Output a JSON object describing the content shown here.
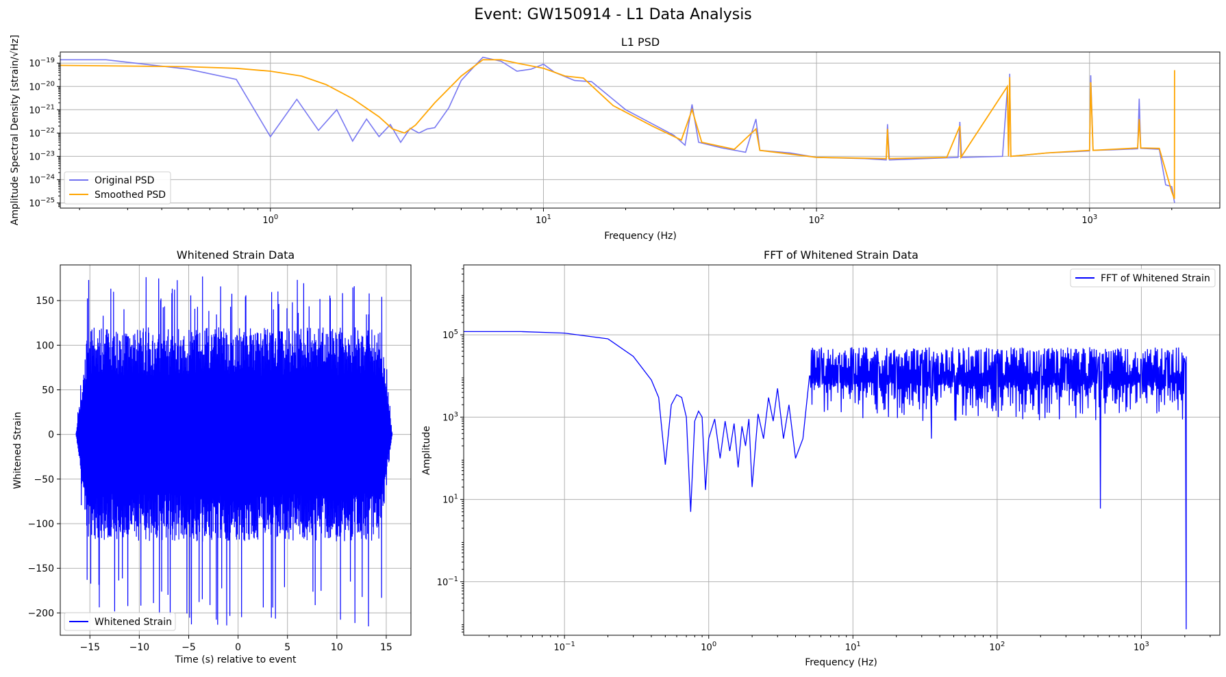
{
  "figure": {
    "suptitle": "Event: GW150914 - L1 Data Analysis"
  },
  "colors": {
    "original": "#7070f0",
    "smoothed": "#ffa500",
    "strain": "#0000ff",
    "fft": "#0000ff"
  },
  "chart_data": [
    {
      "id": "psd",
      "type": "line",
      "title": "L1 PSD",
      "xlabel": "Frequency (Hz)",
      "ylabel": "Amplitude Spectral Density [strain/√Hz]",
      "xscale": "log",
      "yscale": "log",
      "xlim": [
        0.17,
        3000
      ],
      "ylim": [
        6e-26,
        3e-19
      ],
      "xticks": [
        {
          "v": 1,
          "m": "10",
          "e": "0"
        },
        {
          "v": 10,
          "m": "10",
          "e": "1"
        },
        {
          "v": 100,
          "m": "10",
          "e": "2"
        },
        {
          "v": 1000,
          "m": "10",
          "e": "3"
        }
      ],
      "yticks": [
        {
          "v": 1e-19,
          "m": "10",
          "e": "−19"
        },
        {
          "v": 1e-20,
          "m": "10",
          "e": "−20"
        },
        {
          "v": 1e-21,
          "m": "10",
          "e": "−21"
        },
        {
          "v": 1e-22,
          "m": "10",
          "e": "−22"
        },
        {
          "v": 1e-23,
          "m": "10",
          "e": "−23"
        },
        {
          "v": 1e-24,
          "m": "10",
          "e": "−24"
        },
        {
          "v": 1e-25,
          "m": "10",
          "e": "−25"
        }
      ],
      "grid": true,
      "legend": {
        "placement": "lower-left",
        "entries": [
          "Original PSD",
          "Smoothed PSD"
        ]
      },
      "series": [
        {
          "name": "Original PSD",
          "color": "#7070f0",
          "points": [
            [
              0.17,
              1.4e-19
            ],
            [
              0.25,
              1.4e-19
            ],
            [
              0.5,
              5.5e-20
            ],
            [
              0.75,
              2e-20
            ],
            [
              1.0,
              7e-23
            ],
            [
              1.25,
              2.8e-21
            ],
            [
              1.5,
              1.3e-22
            ],
            [
              1.75,
              1e-21
            ],
            [
              2.0,
              4.5e-23
            ],
            [
              2.25,
              4e-22
            ],
            [
              2.5,
              7e-23
            ],
            [
              2.75,
              2.3e-22
            ],
            [
              3.0,
              4e-23
            ],
            [
              3.25,
              1.6e-22
            ],
            [
              3.5,
              1e-22
            ],
            [
              3.75,
              1.5e-22
            ],
            [
              4.0,
              1.7e-22
            ],
            [
              4.5,
              1.2e-21
            ],
            [
              5.0,
              1.8e-20
            ],
            [
              6.0,
              1.8e-19
            ],
            [
              7.0,
              1.2e-19
            ],
            [
              8.0,
              4.5e-20
            ],
            [
              9.0,
              5.5e-20
            ],
            [
              10.0,
              9e-20
            ],
            [
              11.0,
              4e-20
            ],
            [
              13.0,
              1.8e-20
            ],
            [
              15.0,
              1.6e-20
            ],
            [
              20.0,
              1e-21
            ],
            [
              25.0,
              2.5e-22
            ],
            [
              30.0,
              8e-23
            ],
            [
              33.0,
              3e-23
            ],
            [
              35.0,
              1.7e-21
            ],
            [
              37.0,
              4e-23
            ],
            [
              45.0,
              2.3e-23
            ],
            [
              55.0,
              1.5e-23
            ],
            [
              60.0,
              4e-22
            ],
            [
              62.0,
              1.8e-23
            ],
            [
              80.0,
              1.4e-23
            ],
            [
              100.0,
              9e-24
            ],
            [
              150.0,
              8e-24
            ],
            [
              180.0,
              7e-24
            ],
            [
              182.0,
              2.4e-22
            ],
            [
              185.0,
              7e-24
            ],
            [
              250.0,
              8e-24
            ],
            [
              330.0,
              9e-24
            ],
            [
              335.0,
              3e-22
            ],
            [
              340.0,
              9e-24
            ],
            [
              480.0,
              1e-23
            ],
            [
              500.0,
              8e-21
            ],
            [
              505.0,
              1e-23
            ],
            [
              510.0,
              3.5e-20
            ],
            [
              515.0,
              1e-23
            ],
            [
              700.0,
              1.4e-23
            ],
            [
              1000.0,
              1.7e-23
            ],
            [
              1010.0,
              3e-20
            ],
            [
              1030.0,
              1.8e-23
            ],
            [
              1200.0,
              1.9e-23
            ],
            [
              1500.0,
              2.1e-23
            ],
            [
              1520.0,
              3e-21
            ],
            [
              1540.0,
              2.2e-23
            ],
            [
              1800.0,
              2e-23
            ],
            [
              1900.0,
              6e-25
            ],
            [
              2000.0,
              5e-25
            ],
            [
              2048.0,
              1e-25
            ]
          ]
        },
        {
          "name": "Smoothed PSD",
          "color": "#ffa500",
          "points": [
            [
              0.17,
              8e-20
            ],
            [
              0.3,
              7.5e-20
            ],
            [
              0.5,
              7e-20
            ],
            [
              0.75,
              6e-20
            ],
            [
              1.0,
              4.5e-20
            ],
            [
              1.3,
              2.8e-20
            ],
            [
              1.6,
              1.2e-20
            ],
            [
              2.0,
              3e-21
            ],
            [
              2.5,
              5e-22
            ],
            [
              2.8,
              1.5e-22
            ],
            [
              3.1,
              1e-22
            ],
            [
              3.4,
              2.2e-22
            ],
            [
              4.0,
              2e-21
            ],
            [
              5.0,
              2.8e-20
            ],
            [
              6.0,
              1.4e-19
            ],
            [
              7.0,
              1.4e-19
            ],
            [
              8.0,
              1e-19
            ],
            [
              10.0,
              6e-20
            ],
            [
              12.0,
              2.8e-20
            ],
            [
              14.0,
              2.3e-20
            ],
            [
              18.0,
              1.5e-21
            ],
            [
              25.0,
              2e-22
            ],
            [
              32.0,
              5e-23
            ],
            [
              35.0,
              1e-21
            ],
            [
              38.0,
              4e-23
            ],
            [
              50.0,
              2e-23
            ],
            [
              60.0,
              1.5e-22
            ],
            [
              62.0,
              1.8e-23
            ],
            [
              100.0,
              9e-24
            ],
            [
              180.0,
              8e-24
            ],
            [
              182.0,
              1.5e-22
            ],
            [
              184.0,
              8e-24
            ],
            [
              300.0,
              9e-24
            ],
            [
              335.0,
              2e-22
            ],
            [
              338.0,
              9e-24
            ],
            [
              500.0,
              1e-20
            ],
            [
              505.0,
              1e-23
            ],
            [
              510.0,
              2.5e-20
            ],
            [
              515.0,
              1e-23
            ],
            [
              700.0,
              1.4e-23
            ],
            [
              1000.0,
              1.8e-23
            ],
            [
              1010.0,
              1.5e-20
            ],
            [
              1030.0,
              1.8e-23
            ],
            [
              1500.0,
              2.3e-23
            ],
            [
              1520.0,
              4e-22
            ],
            [
              1540.0,
              2.3e-23
            ],
            [
              1800.0,
              2.2e-23
            ],
            [
              2000.0,
              3e-25
            ],
            [
              2045.0,
              1.5e-25
            ],
            [
              2048.0,
              5e-20
            ]
          ]
        }
      ]
    },
    {
      "id": "strain",
      "type": "line",
      "title": "Whitened Strain Data",
      "xlabel": "Time (s) relative to event",
      "ylabel": "Whitened Strain",
      "xlim": [
        -18,
        17.5
      ],
      "ylim": [
        -225,
        190
      ],
      "xticks": [
        -15,
        -10,
        -5,
        0,
        5,
        10,
        15
      ],
      "yticks": [
        150,
        100,
        50,
        0,
        -50,
        -100,
        -150,
        -200
      ],
      "grid": true,
      "legend": {
        "placement": "lower-left",
        "entries": [
          "Whitened Strain"
        ]
      },
      "series": [
        {
          "name": "Whitened Strain",
          "color": "#0000ff",
          "time_range": [
            -16.4,
            15.6
          ],
          "max": 177,
          "min": -215,
          "typical_envelope": 120
        }
      ]
    },
    {
      "id": "fft",
      "type": "line",
      "title": "FFT of Whitened Strain Data",
      "xlabel": "Frequency (Hz)",
      "ylabel": "Amplitude",
      "xscale": "log",
      "yscale": "log",
      "xlim": [
        0.02,
        3500
      ],
      "ylim": [
        0.005,
        5000000.0
      ],
      "xticks": [
        {
          "v": 0.1,
          "m": "10",
          "e": "−1"
        },
        {
          "v": 1,
          "m": "10",
          "e": "0"
        },
        {
          "v": 10,
          "m": "10",
          "e": "1"
        },
        {
          "v": 100,
          "m": "10",
          "e": "2"
        },
        {
          "v": 1000,
          "m": "10",
          "e": "3"
        }
      ],
      "yticks": [
        {
          "v": 100000,
          "m": "10",
          "e": "5"
        },
        {
          "v": 1000,
          "m": "10",
          "e": "3"
        },
        {
          "v": 10,
          "m": "10",
          "e": "1"
        },
        {
          "v": 0.1,
          "m": "10",
          "e": "−1"
        }
      ],
      "grid": true,
      "legend": {
        "placement": "upper-right",
        "entries": [
          "FFT of Whitened Strain"
        ]
      },
      "series": [
        {
          "name": "FFT of Whitened Strain",
          "color": "#0000ff",
          "points": [
            [
              0.02,
              120000.0
            ],
            [
              0.05,
              120000.0
            ],
            [
              0.1,
              110000.0
            ],
            [
              0.2,
              80000.0
            ],
            [
              0.3,
              30000.0
            ],
            [
              0.4,
              8000.0
            ],
            [
              0.45,
              3000.0
            ],
            [
              0.5,
              70
            ],
            [
              0.55,
              2000.0
            ],
            [
              0.6,
              3500.0
            ],
            [
              0.65,
              3000.0
            ],
            [
              0.7,
              1000.0
            ],
            [
              0.75,
              5
            ],
            [
              0.8,
              800
            ],
            [
              0.85,
              1400.0
            ],
            [
              0.9,
              1000.0
            ],
            [
              0.95,
              17
            ],
            [
              1.0,
              300
            ],
            [
              1.1,
              900
            ],
            [
              1.2,
              100
            ],
            [
              1.3,
              800
            ],
            [
              1.4,
              150
            ],
            [
              1.5,
              700
            ],
            [
              1.6,
              60
            ],
            [
              1.7,
              600
            ],
            [
              1.8,
              200
            ],
            [
              1.9,
              900
            ],
            [
              2.0,
              20
            ],
            [
              2.2,
              1200.0
            ],
            [
              2.4,
              300
            ],
            [
              2.6,
              3000.0
            ],
            [
              2.8,
              800
            ],
            [
              3.0,
              5000.0
            ],
            [
              3.3,
              300
            ],
            [
              3.6,
              2000.0
            ],
            [
              4.0,
              100
            ],
            [
              4.5,
              300
            ],
            [
              5.0,
              10000.0
            ],
            [
              5.2,
              2000.0
            ],
            [
              6.0,
              40000.0
            ],
            [
              8.0,
              20000.0
            ],
            [
              10.0,
              30000.0
            ],
            [
              15.0,
              20000.0
            ],
            [
              20.0,
              30000.0
            ],
            [
              30.0,
              20000.0
            ],
            [
              35.0,
              300
            ],
            [
              36.0,
              15000.0
            ],
            [
              50.0,
              20000.0
            ],
            [
              100.0,
              20000.0
            ],
            [
              200.0,
              20000.0
            ],
            [
              300.0,
              20000.0
            ],
            [
              500.0,
              25000.0
            ],
            [
              520.0,
              6
            ],
            [
              540.0,
              20000.0
            ],
            [
              1000.0,
              25000.0
            ],
            [
              1500.0,
              25000.0
            ],
            [
              2000.0,
              25000.0
            ],
            [
              2040.0,
              0.2
            ],
            [
              2045.0,
              0.007
            ],
            [
              2048.0,
              30000.0
            ]
          ]
        }
      ]
    }
  ]
}
